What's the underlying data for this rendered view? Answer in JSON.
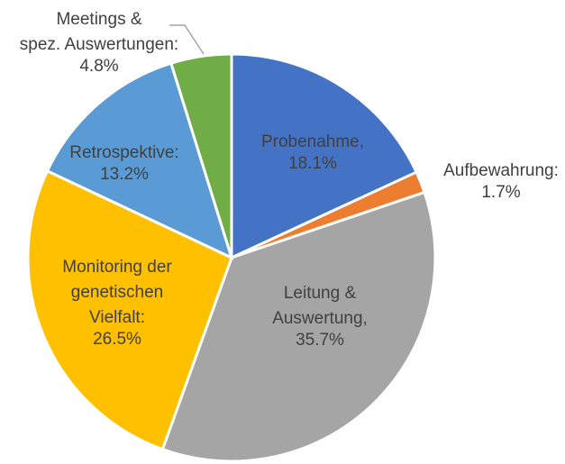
{
  "chart_data": {
    "type": "pie",
    "categories": [
      "Probenahme,",
      "Aufbewahrung:",
      "Leitung & Auswertung,",
      "Monitoring der genetischen Vielfalt:",
      "Retrospektive:",
      "Meetings & spez. Auswertungen:"
    ],
    "values": [
      18.1,
      1.7,
      35.7,
      26.5,
      13.2,
      4.8
    ],
    "value_labels": [
      "18.1%",
      "1.7%",
      "35.7%",
      "26.5%",
      "13.2%",
      "4.8%"
    ],
    "colors": [
      "#4472c4",
      "#ed7d31",
      "#a5a5a5",
      "#ffc000",
      "#5b9bd5",
      "#70ad47"
    ]
  }
}
